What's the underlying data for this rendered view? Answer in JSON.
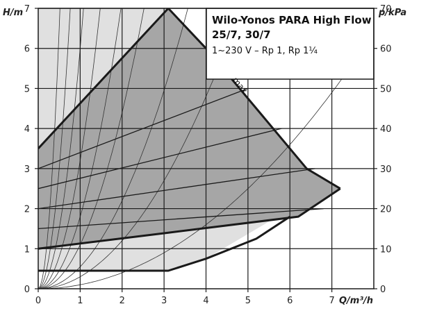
{
  "chart_data": {
    "type": "line",
    "title": "Wilo-Yonos PARA High Flow",
    "subtitle_lines": [
      "25/7, 30/7",
      "1~230 V – Rp 1, Rp 1¼"
    ],
    "left_axis_label": "H/m",
    "right_axis_label": "p/kPa",
    "x_axis_label": "Q/m³/h",
    "xlim": [
      0,
      8
    ],
    "ylim": [
      0,
      7
    ],
    "right_ylim": [
      0,
      70
    ],
    "x_ticks": [
      0,
      1,
      2,
      3,
      4,
      5,
      6,
      7
    ],
    "y_ticks": [
      0,
      1,
      2,
      3,
      4,
      5,
      6,
      7
    ],
    "right_ticks": [
      0,
      10,
      20,
      30,
      40,
      50,
      60,
      70
    ],
    "grid": true,
    "annotation": "max.",
    "regions": {
      "outer_light": [
        [
          0,
          7
        ],
        [
          3.1,
          7
        ],
        [
          4.0,
          6.0
        ],
        [
          6.4,
          3.0
        ],
        [
          7.2,
          2.5
        ],
        [
          5.7,
          1.8
        ],
        [
          4.0,
          0.75
        ],
        [
          3.1,
          0.45
        ],
        [
          0,
          0.45
        ]
      ],
      "dark_operating": [
        [
          0,
          3.5
        ],
        [
          3.1,
          7
        ],
        [
          4.0,
          6.0
        ],
        [
          6.4,
          3.0
        ],
        [
          7.2,
          2.5
        ],
        [
          6.2,
          1.8
        ],
        [
          3.1,
          1.4
        ],
        [
          0,
          1.0
        ]
      ]
    },
    "series": [
      {
        "values": [
          [
            0,
            3.5
          ],
          [
            3.1,
            7
          ],
          [
            4.0,
            6.0
          ],
          [
            6.4,
            3.0
          ],
          [
            7.2,
            2.5
          ]
        ]
      },
      {
        "values": [
          [
            7.2,
            2.5
          ],
          [
            6.2,
            1.8
          ],
          [
            3.1,
            1.4
          ],
          [
            0,
            1.0
          ]
        ]
      },
      {
        "values": [
          [
            0,
            0.45
          ],
          [
            3.1,
            0.45
          ],
          [
            4.0,
            0.75
          ],
          [
            5.2,
            1.25
          ],
          [
            6.0,
            1.8
          ]
        ]
      },
      {
        "values": [
          [
            0,
            3.0
          ],
          [
            5.0,
            5.0
          ]
        ]
      },
      {
        "values": [
          [
            0,
            2.5
          ],
          [
            5.8,
            4.0
          ]
        ]
      },
      {
        "values": [
          [
            0,
            2.0
          ],
          [
            6.6,
            3.0
          ]
        ]
      },
      {
        "values": [
          [
            0,
            1.5
          ],
          [
            6.8,
            2.0
          ]
        ]
      }
    ],
    "system_curve_k": [
      0.55,
      1.1,
      1.8,
      3.2,
      6.0,
      12.0,
      26.0,
      0.3,
      0.1
    ],
    "colors": {
      "dark_fill": "#a6a6a6",
      "light_fill": "#e0e0e0",
      "line": "#1a1a1a"
    }
  }
}
